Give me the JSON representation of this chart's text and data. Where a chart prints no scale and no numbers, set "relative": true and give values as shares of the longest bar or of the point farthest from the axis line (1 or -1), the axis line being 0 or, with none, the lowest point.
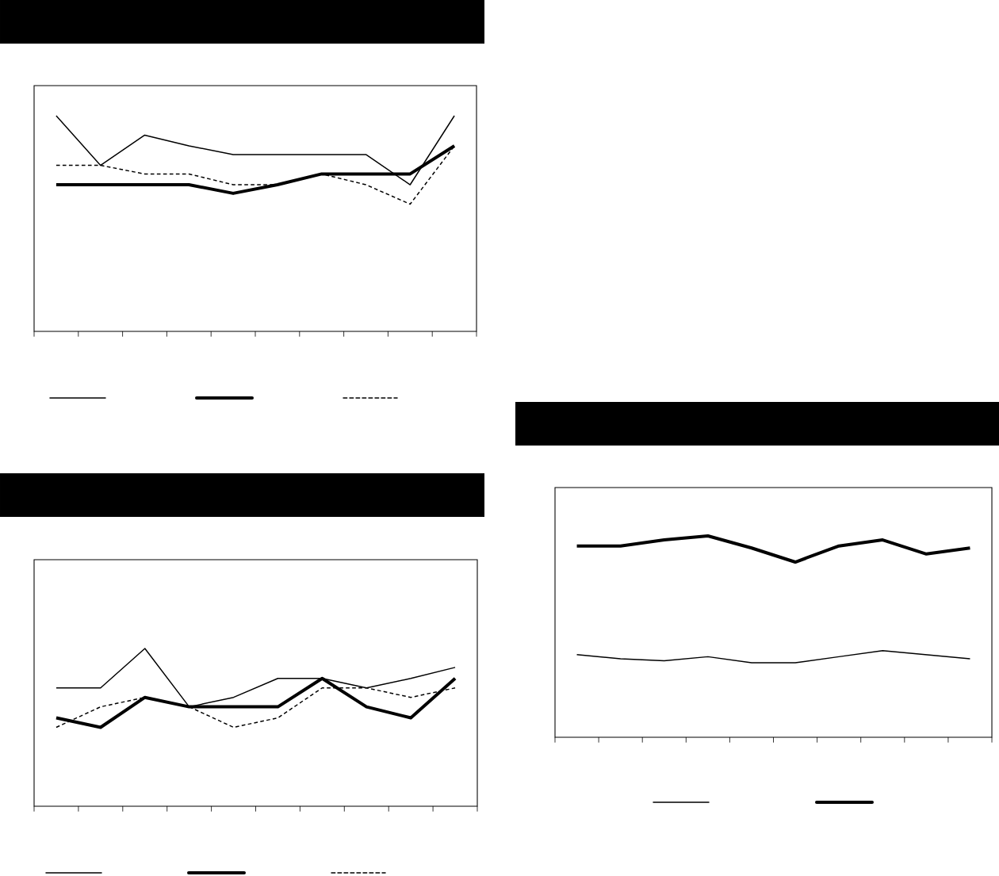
{
  "chart_data": [
    {
      "type": "line",
      "relative": true,
      "tick_labels": false,
      "categories": [
        null,
        null,
        null,
        null,
        null,
        null,
        null,
        null,
        null,
        null
      ],
      "series": [
        {
          "color": "#000000",
          "line_style": "solid",
          "values": [
            1,
            0.77,
            0.91,
            0.86,
            0.82,
            0.82,
            0.82,
            0.82,
            0.68,
            1
          ]
        },
        {
          "color": "#000000",
          "line_style": "solid",
          "values": [
            0.68,
            0.68,
            0.68,
            0.68,
            0.64,
            0.68,
            0.73,
            0.73,
            0.73,
            0.86
          ]
        },
        {
          "color": "#000000",
          "line_style": "dashed",
          "values": [
            0.77,
            0.77,
            0.73,
            0.73,
            0.68,
            0.68,
            0.73,
            0.68,
            0.59,
            0.86
          ]
        }
      ]
    },
    {
      "type": "line",
      "relative": true,
      "tick_labels": false,
      "categories": [
        null,
        null,
        null,
        null,
        null,
        null,
        null,
        null,
        null,
        null
      ],
      "series": [
        {
          "color": "#000000",
          "line_style": "solid",
          "values": [
            0.75,
            0.75,
            1,
            0.63,
            0.69,
            0.81,
            0.81,
            0.75,
            0.81,
            0.88
          ]
        },
        {
          "color": "#000000",
          "line_style": "solid",
          "values": [
            0.56,
            0.5,
            0.69,
            0.63,
            0.63,
            0.63,
            0.81,
            0.63,
            0.56,
            0.81
          ]
        },
        {
          "color": "#000000",
          "line_style": "dashed",
          "values": [
            0.5,
            0.63,
            0.69,
            0.63,
            0.5,
            0.56,
            0.75,
            0.75,
            0.69,
            0.75
          ]
        }
      ]
    },
    {
      "type": "line",
      "relative": true,
      "tick_labels": false,
      "categories": [
        null,
        null,
        null,
        null,
        null,
        null,
        null,
        null,
        null,
        null
      ],
      "series": [
        {
          "color": "#000000",
          "line_style": "solid",
          "values": [
            0.41,
            0.39,
            0.38,
            0.4,
            0.37,
            0.37,
            0.4,
            0.43,
            0.41,
            0.39
          ]
        },
        {
          "color": "#000000",
          "line_style": "solid",
          "values": [
            0.95,
            0.95,
            0.98,
            1,
            0.94,
            0.87,
            0.95,
            0.98,
            0.91,
            0.94
          ]
        }
      ]
    }
  ]
}
